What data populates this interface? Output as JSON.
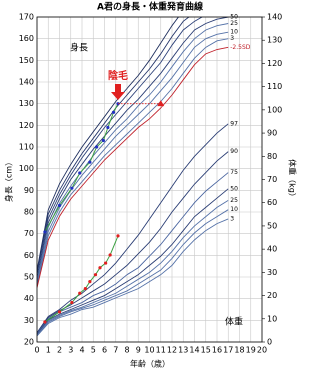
{
  "chart_data": {
    "type": "line",
    "title": "A君の身長・体重発育曲線",
    "xlabel": "年齢（歳）",
    "ylabel": "身長（cm）",
    "y2label": "体重（kg）",
    "xlim": [
      0,
      20
    ],
    "xticks": [
      0,
      1,
      2,
      3,
      4,
      5,
      6,
      7,
      8,
      9,
      10,
      11,
      12,
      13,
      14,
      15,
      16,
      17,
      18,
      19,
      20
    ],
    "ylim": [
      20,
      170
    ],
    "yticks": [
      20,
      30,
      40,
      50,
      60,
      70,
      80,
      90,
      100,
      110,
      120,
      130,
      140,
      150,
      160,
      170
    ],
    "y2lim": [
      0,
      140
    ],
    "y2ticks": [
      0,
      10,
      20,
      30,
      40,
      50,
      60,
      70,
      80,
      90,
      100,
      110,
      120,
      130,
      140
    ],
    "grid": true,
    "annotations": [
      "身長",
      "体重",
      "陰毛"
    ],
    "series": [
      {
        "color": "#1f2f5e",
        "x": [
          0,
          1,
          2,
          3,
          4,
          5,
          6,
          7,
          8,
          9,
          10,
          11,
          12,
          13,
          14,
          15,
          16,
          17
        ],
        "values": [
          53,
          81,
          93,
          102,
          110,
          117,
          124,
          131,
          137,
          143,
          150,
          158,
          166,
          173,
          176,
          177,
          177,
          177
        ]
      },
      {
        "color": "#24356a",
        "x": [
          0,
          1,
          2,
          3,
          4,
          5,
          6,
          7,
          8,
          9,
          10,
          11,
          12,
          13,
          14,
          15,
          16,
          17
        ],
        "values": [
          52,
          79,
          90,
          99,
          107,
          114,
          121,
          128,
          134,
          140,
          146,
          153,
          161,
          168,
          172,
          173,
          174,
          174
        ]
      },
      {
        "color": "#2c4078",
        "x": [
          0,
          1,
          2,
          3,
          4,
          5,
          6,
          7,
          8,
          9,
          10,
          11,
          12,
          13,
          14,
          15,
          16,
          17
        ],
        "values": [
          51,
          77,
          88,
          97,
          105,
          112,
          119,
          125,
          131,
          137,
          143,
          149,
          157,
          164,
          168,
          171,
          172,
          172
        ]
      },
      {
        "name": "50",
        "color": "#2a3d74",
        "x": [
          0,
          1,
          2,
          3,
          4,
          5,
          6,
          7,
          8,
          9,
          10,
          11,
          12,
          13,
          14,
          15,
          16,
          17
        ],
        "values": [
          49,
          75,
          86,
          95,
          102,
          109,
          115,
          121,
          127,
          132,
          138,
          144,
          151,
          158,
          164,
          167,
          169,
          170
        ]
      },
      {
        "name": "25",
        "color": "#5572a8",
        "x": [
          0,
          1,
          2,
          3,
          4,
          5,
          6,
          7,
          8,
          9,
          10,
          11,
          12,
          13,
          14,
          15,
          16,
          17
        ],
        "values": [
          48,
          73,
          84,
          92,
          99,
          106,
          112,
          118,
          123,
          129,
          134,
          140,
          147,
          154,
          160,
          164,
          166,
          167
        ]
      },
      {
        "name": "10",
        "color": "#5572a8",
        "x": [
          0,
          1,
          2,
          3,
          4,
          5,
          6,
          7,
          8,
          9,
          10,
          11,
          12,
          13,
          14,
          15,
          16,
          17
        ],
        "values": [
          47,
          71,
          82,
          90,
          97,
          103,
          109,
          115,
          120,
          125,
          130,
          136,
          142,
          149,
          156,
          160,
          162,
          163
        ]
      },
      {
        "name": "3",
        "color": "#5572a8",
        "x": [
          0,
          1,
          2,
          3,
          4,
          5,
          6,
          7,
          8,
          9,
          10,
          11,
          12,
          13,
          14,
          15,
          16,
          17
        ],
        "values": [
          46,
          69,
          80,
          88,
          94,
          100,
          106,
          111,
          116,
          121,
          126,
          131,
          137,
          144,
          151,
          156,
          159,
          160
        ]
      },
      {
        "name": "-2.5SD",
        "color": "#c0202a",
        "x": [
          0,
          1,
          2,
          3,
          4,
          5,
          6,
          7,
          8,
          9,
          10,
          11,
          12,
          13,
          14,
          15,
          16,
          17
        ],
        "values": [
          45,
          67,
          78,
          86,
          92,
          98,
          104,
          109,
          114,
          119,
          123,
          128,
          134,
          141,
          148,
          153,
          155,
          156
        ]
      },
      {
        "name": "97",
        "axis": "y2",
        "color": "#2a3d74",
        "x": [
          0,
          1,
          2,
          3,
          4,
          5,
          6,
          7,
          8,
          9,
          10,
          11,
          12,
          13,
          14,
          15,
          16,
          17
        ],
        "values": [
          4,
          11,
          14,
          18,
          21,
          25,
          29,
          34,
          40,
          46,
          53,
          60,
          67,
          74,
          80,
          85,
          90,
          94
        ]
      },
      {
        "name": "90",
        "axis": "y2",
        "color": "#2a3d74",
        "x": [
          0,
          1,
          2,
          3,
          4,
          5,
          6,
          7,
          8,
          9,
          10,
          11,
          12,
          13,
          14,
          15,
          16,
          17
        ],
        "values": [
          3.8,
          10.5,
          13.5,
          16,
          19,
          22,
          25,
          29,
          33,
          38,
          43,
          49,
          56,
          62,
          68,
          73,
          78,
          82
        ]
      },
      {
        "name": "75",
        "axis": "y2",
        "color": "#4a65a0",
        "x": [
          0,
          1,
          2,
          3,
          4,
          5,
          6,
          7,
          8,
          9,
          10,
          11,
          12,
          13,
          14,
          15,
          16,
          17
        ],
        "values": [
          3.5,
          10,
          13,
          15,
          17,
          20,
          22,
          25,
          29,
          32,
          37,
          42,
          48,
          54,
          60,
          65,
          69,
          73
        ]
      },
      {
        "name": "50",
        "axis": "y2",
        "color": "#2a3d74",
        "x": [
          0,
          1,
          2,
          3,
          4,
          5,
          6,
          7,
          8,
          9,
          10,
          11,
          12,
          13,
          14,
          15,
          16,
          17
        ],
        "values": [
          3.2,
          9.5,
          12,
          14,
          16,
          18,
          20,
          23,
          26,
          29,
          33,
          37,
          42,
          48,
          54,
          58,
          62,
          66
        ]
      },
      {
        "name": "25",
        "axis": "y2",
        "color": "#5572a8",
        "x": [
          0,
          1,
          2,
          3,
          4,
          5,
          6,
          7,
          8,
          9,
          10,
          11,
          12,
          13,
          14,
          15,
          16,
          17
        ],
        "values": [
          3,
          9,
          11.5,
          13.5,
          15,
          17,
          19,
          21,
          24,
          27,
          30,
          34,
          39,
          45,
          50,
          54,
          58,
          61
        ]
      },
      {
        "name": "10",
        "axis": "y2",
        "color": "#5572a8",
        "x": [
          0,
          1,
          2,
          3,
          4,
          5,
          6,
          7,
          8,
          9,
          10,
          11,
          12,
          13,
          14,
          15,
          16,
          17
        ],
        "values": [
          2.8,
          8.5,
          11,
          13,
          14.5,
          16,
          18,
          20,
          22,
          25,
          28,
          31,
          36,
          42,
          47,
          51,
          54,
          57
        ]
      },
      {
        "name": "3",
        "axis": "y2",
        "color": "#5572a8",
        "x": [
          0,
          1,
          2,
          3,
          4,
          5,
          6,
          7,
          8,
          9,
          10,
          11,
          12,
          13,
          14,
          15,
          16,
          17
        ],
        "values": [
          2.6,
          8,
          10.5,
          12,
          14,
          15,
          17,
          19,
          21,
          23,
          26,
          29,
          33,
          39,
          44,
          48,
          51,
          53
        ]
      },
      {
        "color": "#3aa040",
        "marker_color": "#2030c0",
        "x": [
          0.7,
          2,
          3.1,
          3.8,
          4.7,
          5.3,
          5.9,
          6.3,
          6.8,
          7.2
        ],
        "values": [
          70.8,
          83,
          91,
          98,
          103,
          110,
          113,
          119,
          126,
          130
        ]
      },
      {
        "color": "#3aa040",
        "marker_color": "#e02020",
        "axis": "y2",
        "x": [
          0.7,
          2,
          3.1,
          3.8,
          4.3,
          4.7,
          5.2,
          5.6,
          6.1,
          6.5,
          7.2
        ],
        "values": [
          8.6,
          13,
          17,
          21,
          23,
          26,
          29,
          32,
          34,
          37.5,
          45.7
        ]
      },
      {
        "color": "#e02020",
        "dash": true,
        "marker": "triangle",
        "x": [
          7.2,
          11
        ],
        "values": [
          130,
          130
        ]
      }
    ]
  }
}
